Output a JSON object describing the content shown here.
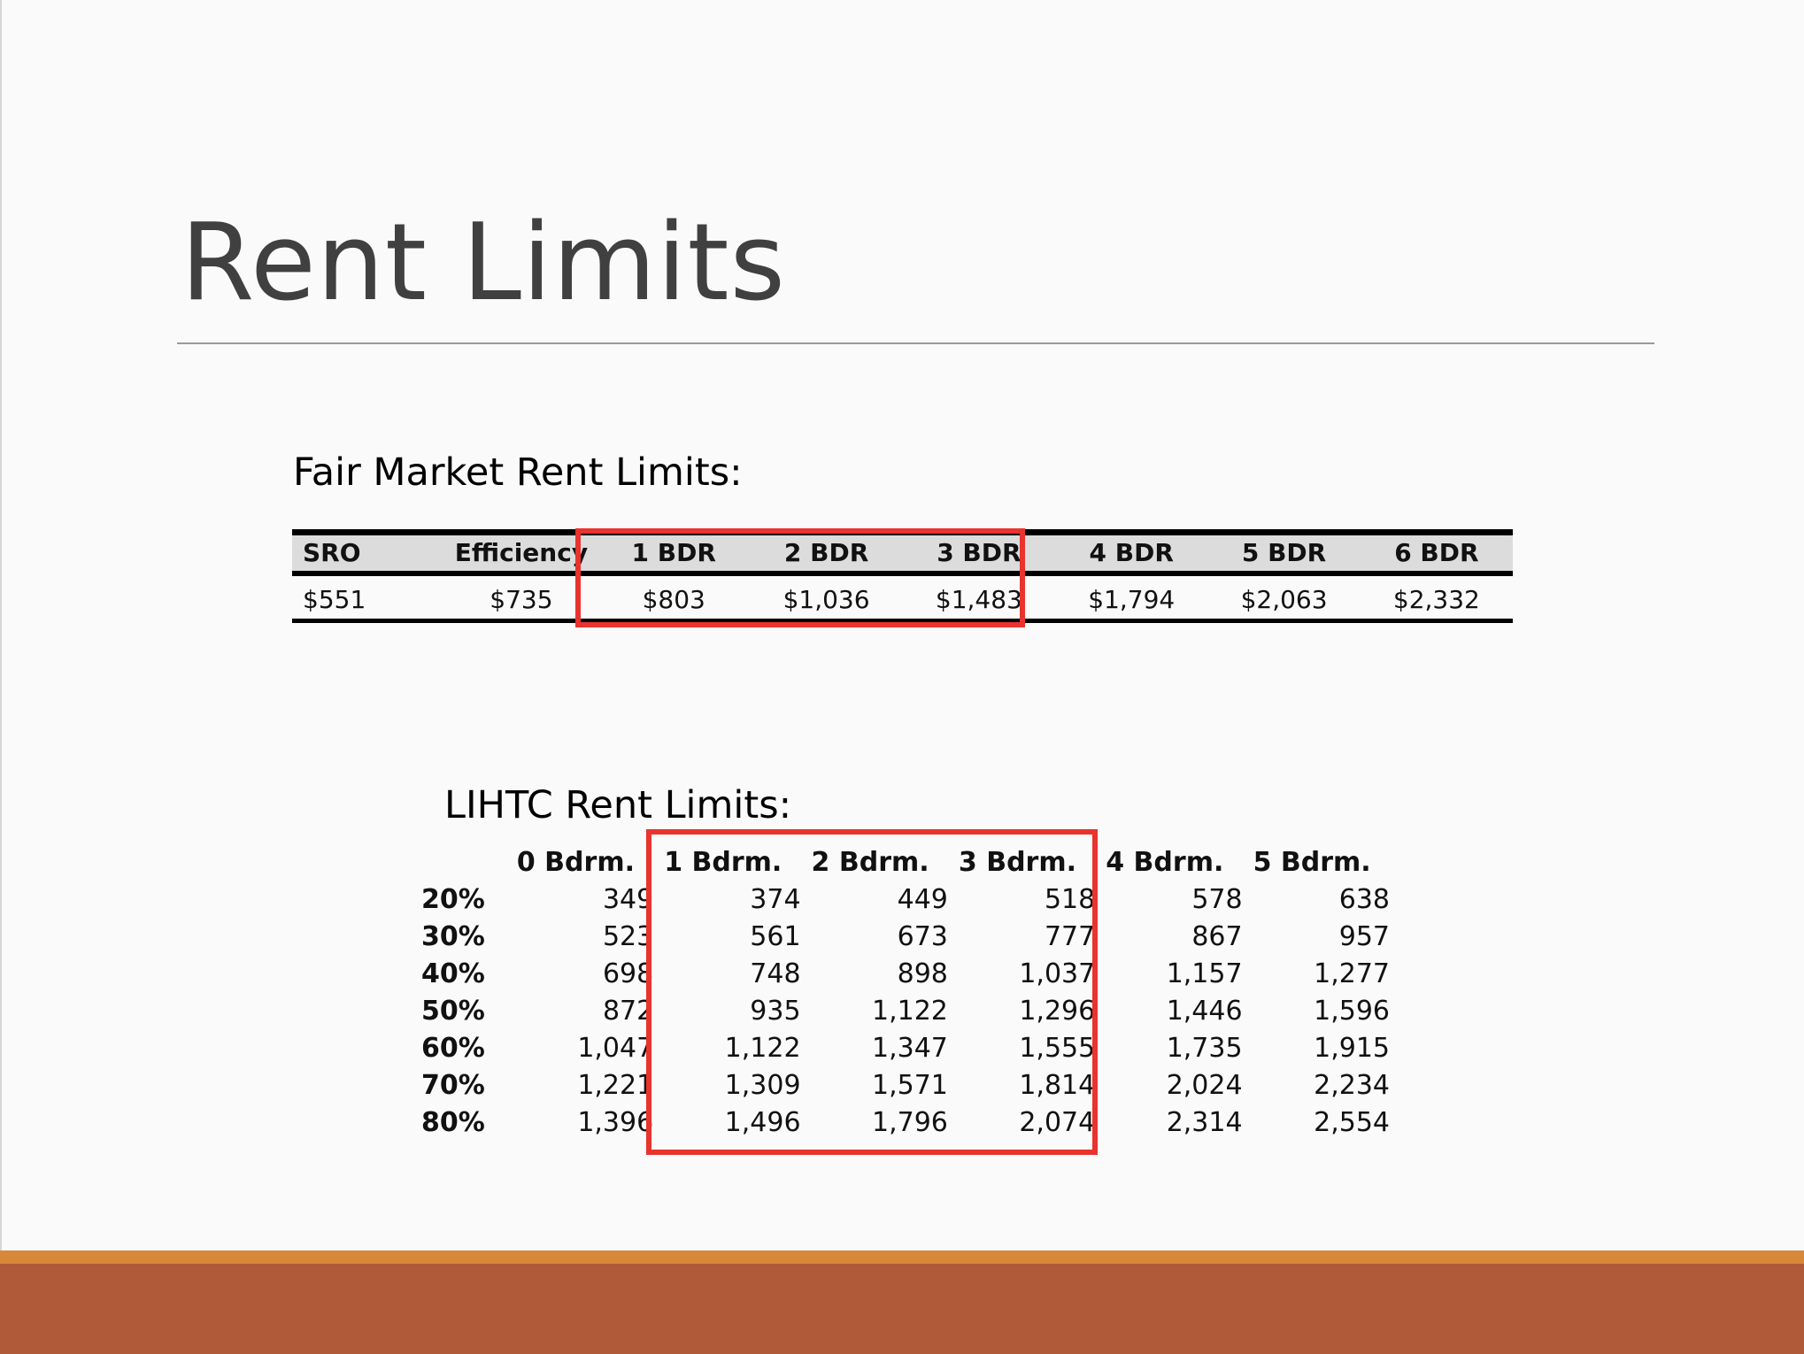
{
  "slide": {
    "title": "Rent Limits"
  },
  "fair_market": {
    "heading": "Fair Market Rent Limits:",
    "columns": [
      "SRO",
      "Efficiency",
      "1 BDR",
      "2 BDR",
      "3 BDR",
      "4 BDR",
      "5 BDR",
      "6 BDR"
    ],
    "values": [
      "$551",
      "$735",
      "$803",
      "$1,036",
      "$1,483",
      "$1,794",
      "$2,063",
      "$2,332"
    ],
    "highlighted_columns": [
      "1 BDR",
      "2 BDR",
      "3 BDR"
    ]
  },
  "lihtc": {
    "heading": "LIHTC Rent Limits:",
    "columns": [
      "0 Bdrm.",
      "1 Bdrm.",
      "2 Bdrm.",
      "3 Bdrm.",
      "4 Bdrm.",
      "5 Bdrm."
    ],
    "rows": [
      {
        "label": "20%",
        "values": [
          "349",
          "374",
          "449",
          "518",
          "578",
          "638"
        ]
      },
      {
        "label": "30%",
        "values": [
          "523",
          "561",
          "673",
          "777",
          "867",
          "957"
        ]
      },
      {
        "label": "40%",
        "values": [
          "698",
          "748",
          "898",
          "1,037",
          "1,157",
          "1,277"
        ]
      },
      {
        "label": "50%",
        "values": [
          "872",
          "935",
          "1,122",
          "1,296",
          "1,446",
          "1,596"
        ]
      },
      {
        "label": "60%",
        "values": [
          "1,047",
          "1,122",
          "1,347",
          "1,555",
          "1,735",
          "1,915"
        ]
      },
      {
        "label": "70%",
        "values": [
          "1,221",
          "1,309",
          "1,571",
          "1,814",
          "2,024",
          "2,234"
        ]
      },
      {
        "label": "80%",
        "values": [
          "1,396",
          "1,496",
          "1,796",
          "2,074",
          "2,314",
          "2,554"
        ]
      }
    ],
    "highlighted_columns": [
      "1 Bdrm.",
      "2 Bdrm.",
      "3 Bdrm."
    ]
  },
  "colors": {
    "highlight": "#e8332e",
    "footer_accent": "#d8883a",
    "footer_band": "#b05a3a",
    "title_text": "#404040"
  }
}
